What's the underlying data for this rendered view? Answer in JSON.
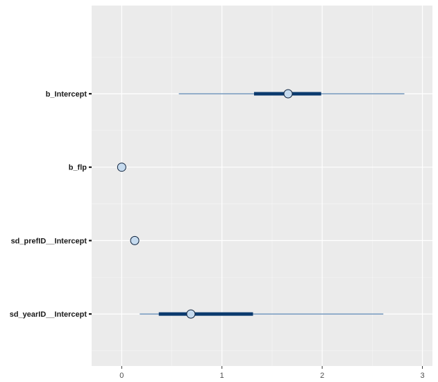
{
  "chart_data": {
    "type": "interval",
    "title": "",
    "xlabel": "",
    "ylabel": "",
    "xlim": [
      -0.3,
      3.1
    ],
    "x_ticks": [
      0,
      1,
      2,
      3
    ],
    "x_tick_labels": [
      "0",
      "1",
      "2",
      "3"
    ],
    "grid": true,
    "legend": "none",
    "parameters": [
      {
        "label": "b_Intercept",
        "median": 1.66,
        "inner": [
          1.32,
          1.99
        ],
        "outer": [
          0.57,
          2.82
        ]
      },
      {
        "label": "b_flp",
        "median": 0.0,
        "inner": [
          0.0,
          0.0
        ],
        "outer": [
          0.0,
          0.0
        ]
      },
      {
        "label": "sd_prefID__Intercept",
        "median": 0.13,
        "inner": [
          0.13,
          0.13
        ],
        "outer": [
          0.13,
          0.13
        ]
      },
      {
        "label": "sd_yearID__Intercept",
        "median": 0.69,
        "inner": [
          0.37,
          1.31
        ],
        "outer": [
          0.18,
          2.61
        ]
      }
    ],
    "colors": {
      "panel_background": "#ebebeb",
      "grid_major": "#ffffff",
      "inner_interval": "#0b3a6e",
      "outer_interval": "#5b87b4",
      "point_fill": "#c6dbef",
      "point_stroke": "#0b1f3a"
    }
  }
}
